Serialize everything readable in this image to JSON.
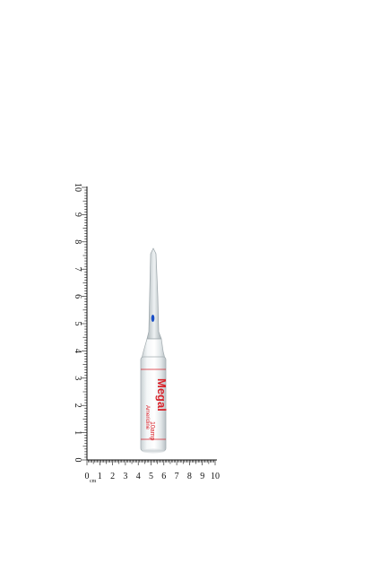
{
  "ruler": {
    "unit": "cm",
    "horizontal_labels": [
      "0",
      "1",
      "2",
      "3",
      "4",
      "5",
      "6",
      "7",
      "8",
      "9",
      "10"
    ],
    "vertical_labels": [
      "0",
      "1",
      "2",
      "3",
      "4",
      "5",
      "6",
      "7",
      "8",
      "9",
      "10"
    ]
  },
  "ampoule": {
    "label_lines": [
      "Megal",
      "Ameridine",
      "10amp"
    ],
    "label_color": "#d8222a",
    "dot_color": "#1a4fc7"
  }
}
